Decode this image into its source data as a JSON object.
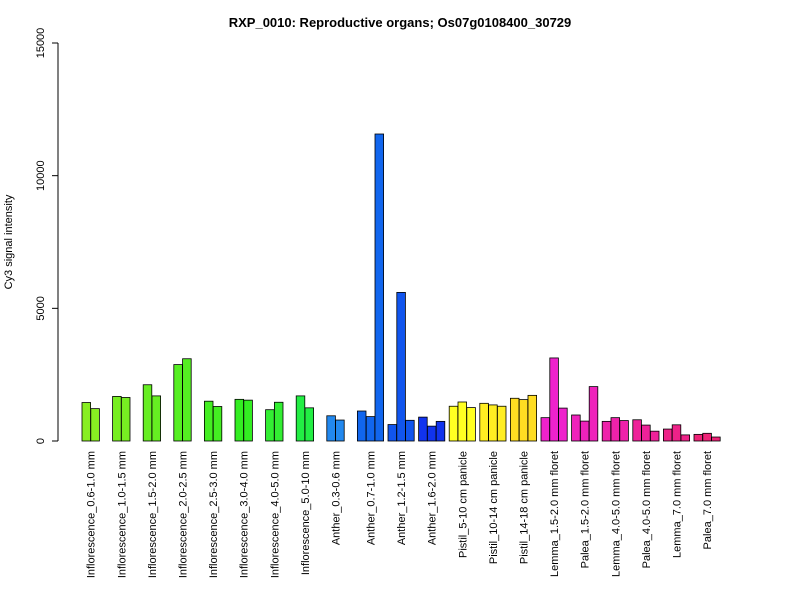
{
  "chart_data": {
    "type": "bar",
    "title": "RXP_0010: Reproductive organs; Os07g0108400_30729",
    "ylabel": "Cy3 signal intensity",
    "xlabel": "",
    "ylim": [
      0,
      15000
    ],
    "yticks": [
      0,
      5000,
      10000,
      15000
    ],
    "categories": [
      {
        "label": "Inflorescence_0.6-1.0 mm",
        "values": [
          1450,
          1220
        ],
        "color": "#88ee22"
      },
      {
        "label": "Inflorescence_1.0-1.5 mm",
        "values": [
          1680,
          1640
        ],
        "color": "#77ee22"
      },
      {
        "label": "Inflorescence_1.5-2.0 mm",
        "values": [
          2120,
          1700
        ],
        "color": "#66ee22"
      },
      {
        "label": "Inflorescence_2.0-2.5 mm",
        "values": [
          2880,
          3100
        ],
        "color": "#55ee22"
      },
      {
        "label": "Inflorescence_2.5-3.0 mm",
        "values": [
          1500,
          1300
        ],
        "color": "#44ee22"
      },
      {
        "label": "Inflorescence_3.0-4.0 mm",
        "values": [
          1570,
          1540
        ],
        "color": "#33ee22"
      },
      {
        "label": "Inflorescence_4.0-5.0 mm",
        "values": [
          1180,
          1460
        ],
        "color": "#33ee33"
      },
      {
        "label": "Inflorescence_5.0-10 mm",
        "values": [
          1700,
          1250
        ],
        "color": "#22ee44"
      },
      {
        "label": "Anther_0.3-0.6 mm",
        "values": [
          950,
          790
        ],
        "color": "#2288ee"
      },
      {
        "label": "Anther_0.7-1.0 mm",
        "values": [
          1130,
          920,
          11570
        ],
        "color": "#1166ee"
      },
      {
        "label": "Anther_1.2-1.5 mm",
        "values": [
          620,
          5600,
          780
        ],
        "color": "#1155ee"
      },
      {
        "label": "Anther_1.6-2.0 mm",
        "values": [
          900,
          560,
          740
        ],
        "color": "#1133ee"
      },
      {
        "label": "Pistil_5-10 cm panicle",
        "values": [
          1310,
          1470,
          1260
        ],
        "color": "#ffff22"
      },
      {
        "label": "Pistil_10-14 cm panicle",
        "values": [
          1420,
          1360,
          1310
        ],
        "color": "#ffee22"
      },
      {
        "label": "Pistil_14-18 cm panicle",
        "values": [
          1610,
          1560,
          1720
        ],
        "color": "#ffdd22"
      },
      {
        "label": "Lemma_1.5-2.0 mm floret",
        "values": [
          880,
          3130,
          1240
        ],
        "color": "#ee22cc"
      },
      {
        "label": "Palea_1.5-2.0 mm floret",
        "values": [
          980,
          750,
          2050
        ],
        "color": "#ee22bb"
      },
      {
        "label": "Lemma_4.0-5.0 mm floret",
        "values": [
          740,
          880,
          770
        ],
        "color": "#ee22aa"
      },
      {
        "label": "Palea_4.0-5.0 mm floret",
        "values": [
          800,
          600,
          370
        ],
        "color": "#ee2299"
      },
      {
        "label": "Lemma_7.0 mm floret",
        "values": [
          450,
          610,
          230
        ],
        "color": "#ee2288"
      },
      {
        "label": "Palea_7.0 mm floret",
        "values": [
          250,
          290,
          150
        ],
        "color": "#ee2277"
      }
    ],
    "grid": false,
    "legend": "none"
  }
}
